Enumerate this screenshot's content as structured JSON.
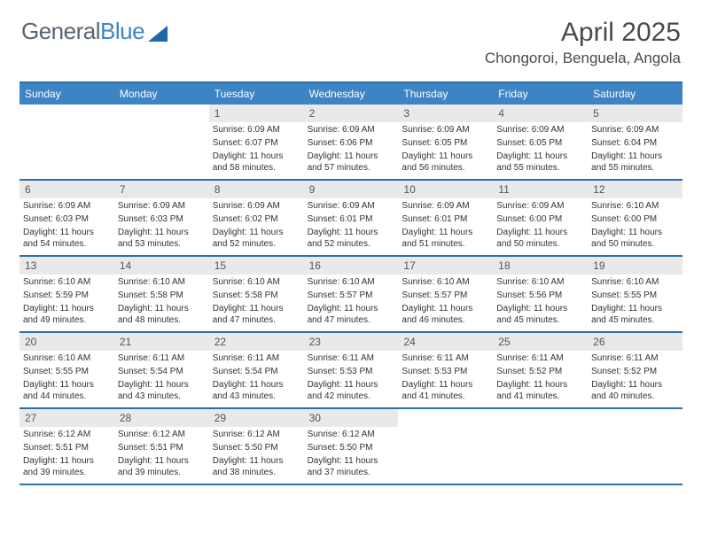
{
  "logo": {
    "word1": "General",
    "word2": "Blue"
  },
  "title": "April 2025",
  "location": "Chongoroi, Benguela, Angola",
  "colors": {
    "header_bar": "#3d84c4",
    "rule": "#2f6fa8",
    "daynum_bg": "#e9e9e9",
    "text": "#333333",
    "logo_gray": "#5a6570",
    "logo_blue": "#3d84c4"
  },
  "day_headers": [
    "Sunday",
    "Monday",
    "Tuesday",
    "Wednesday",
    "Thursday",
    "Friday",
    "Saturday"
  ],
  "weeks": [
    [
      {
        "day": "",
        "sunrise": "",
        "sunset": "",
        "daylight": ""
      },
      {
        "day": "",
        "sunrise": "",
        "sunset": "",
        "daylight": ""
      },
      {
        "day": "1",
        "sunrise": "Sunrise: 6:09 AM",
        "sunset": "Sunset: 6:07 PM",
        "daylight": "Daylight: 11 hours and 58 minutes."
      },
      {
        "day": "2",
        "sunrise": "Sunrise: 6:09 AM",
        "sunset": "Sunset: 6:06 PM",
        "daylight": "Daylight: 11 hours and 57 minutes."
      },
      {
        "day": "3",
        "sunrise": "Sunrise: 6:09 AM",
        "sunset": "Sunset: 6:05 PM",
        "daylight": "Daylight: 11 hours and 56 minutes."
      },
      {
        "day": "4",
        "sunrise": "Sunrise: 6:09 AM",
        "sunset": "Sunset: 6:05 PM",
        "daylight": "Daylight: 11 hours and 55 minutes."
      },
      {
        "day": "5",
        "sunrise": "Sunrise: 6:09 AM",
        "sunset": "Sunset: 6:04 PM",
        "daylight": "Daylight: 11 hours and 55 minutes."
      }
    ],
    [
      {
        "day": "6",
        "sunrise": "Sunrise: 6:09 AM",
        "sunset": "Sunset: 6:03 PM",
        "daylight": "Daylight: 11 hours and 54 minutes."
      },
      {
        "day": "7",
        "sunrise": "Sunrise: 6:09 AM",
        "sunset": "Sunset: 6:03 PM",
        "daylight": "Daylight: 11 hours and 53 minutes."
      },
      {
        "day": "8",
        "sunrise": "Sunrise: 6:09 AM",
        "sunset": "Sunset: 6:02 PM",
        "daylight": "Daylight: 11 hours and 52 minutes."
      },
      {
        "day": "9",
        "sunrise": "Sunrise: 6:09 AM",
        "sunset": "Sunset: 6:01 PM",
        "daylight": "Daylight: 11 hours and 52 minutes."
      },
      {
        "day": "10",
        "sunrise": "Sunrise: 6:09 AM",
        "sunset": "Sunset: 6:01 PM",
        "daylight": "Daylight: 11 hours and 51 minutes."
      },
      {
        "day": "11",
        "sunrise": "Sunrise: 6:09 AM",
        "sunset": "Sunset: 6:00 PM",
        "daylight": "Daylight: 11 hours and 50 minutes."
      },
      {
        "day": "12",
        "sunrise": "Sunrise: 6:10 AM",
        "sunset": "Sunset: 6:00 PM",
        "daylight": "Daylight: 11 hours and 50 minutes."
      }
    ],
    [
      {
        "day": "13",
        "sunrise": "Sunrise: 6:10 AM",
        "sunset": "Sunset: 5:59 PM",
        "daylight": "Daylight: 11 hours and 49 minutes."
      },
      {
        "day": "14",
        "sunrise": "Sunrise: 6:10 AM",
        "sunset": "Sunset: 5:58 PM",
        "daylight": "Daylight: 11 hours and 48 minutes."
      },
      {
        "day": "15",
        "sunrise": "Sunrise: 6:10 AM",
        "sunset": "Sunset: 5:58 PM",
        "daylight": "Daylight: 11 hours and 47 minutes."
      },
      {
        "day": "16",
        "sunrise": "Sunrise: 6:10 AM",
        "sunset": "Sunset: 5:57 PM",
        "daylight": "Daylight: 11 hours and 47 minutes."
      },
      {
        "day": "17",
        "sunrise": "Sunrise: 6:10 AM",
        "sunset": "Sunset: 5:57 PM",
        "daylight": "Daylight: 11 hours and 46 minutes."
      },
      {
        "day": "18",
        "sunrise": "Sunrise: 6:10 AM",
        "sunset": "Sunset: 5:56 PM",
        "daylight": "Daylight: 11 hours and 45 minutes."
      },
      {
        "day": "19",
        "sunrise": "Sunrise: 6:10 AM",
        "sunset": "Sunset: 5:55 PM",
        "daylight": "Daylight: 11 hours and 45 minutes."
      }
    ],
    [
      {
        "day": "20",
        "sunrise": "Sunrise: 6:10 AM",
        "sunset": "Sunset: 5:55 PM",
        "daylight": "Daylight: 11 hours and 44 minutes."
      },
      {
        "day": "21",
        "sunrise": "Sunrise: 6:11 AM",
        "sunset": "Sunset: 5:54 PM",
        "daylight": "Daylight: 11 hours and 43 minutes."
      },
      {
        "day": "22",
        "sunrise": "Sunrise: 6:11 AM",
        "sunset": "Sunset: 5:54 PM",
        "daylight": "Daylight: 11 hours and 43 minutes."
      },
      {
        "day": "23",
        "sunrise": "Sunrise: 6:11 AM",
        "sunset": "Sunset: 5:53 PM",
        "daylight": "Daylight: 11 hours and 42 minutes."
      },
      {
        "day": "24",
        "sunrise": "Sunrise: 6:11 AM",
        "sunset": "Sunset: 5:53 PM",
        "daylight": "Daylight: 11 hours and 41 minutes."
      },
      {
        "day": "25",
        "sunrise": "Sunrise: 6:11 AM",
        "sunset": "Sunset: 5:52 PM",
        "daylight": "Daylight: 11 hours and 41 minutes."
      },
      {
        "day": "26",
        "sunrise": "Sunrise: 6:11 AM",
        "sunset": "Sunset: 5:52 PM",
        "daylight": "Daylight: 11 hours and 40 minutes."
      }
    ],
    [
      {
        "day": "27",
        "sunrise": "Sunrise: 6:12 AM",
        "sunset": "Sunset: 5:51 PM",
        "daylight": "Daylight: 11 hours and 39 minutes."
      },
      {
        "day": "28",
        "sunrise": "Sunrise: 6:12 AM",
        "sunset": "Sunset: 5:51 PM",
        "daylight": "Daylight: 11 hours and 39 minutes."
      },
      {
        "day": "29",
        "sunrise": "Sunrise: 6:12 AM",
        "sunset": "Sunset: 5:50 PM",
        "daylight": "Daylight: 11 hours and 38 minutes."
      },
      {
        "day": "30",
        "sunrise": "Sunrise: 6:12 AM",
        "sunset": "Sunset: 5:50 PM",
        "daylight": "Daylight: 11 hours and 37 minutes."
      },
      {
        "day": "",
        "sunrise": "",
        "sunset": "",
        "daylight": ""
      },
      {
        "day": "",
        "sunrise": "",
        "sunset": "",
        "daylight": ""
      },
      {
        "day": "",
        "sunrise": "",
        "sunset": "",
        "daylight": ""
      }
    ]
  ]
}
